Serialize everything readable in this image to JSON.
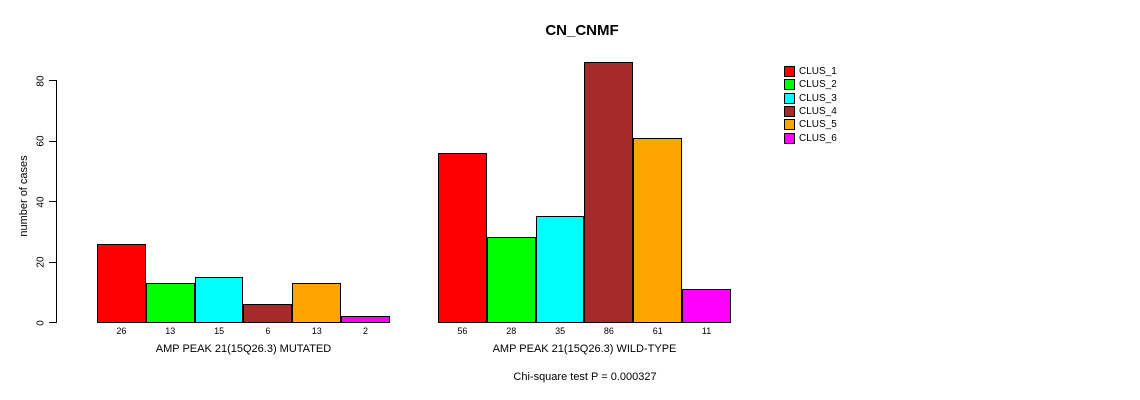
{
  "chart_data": {
    "type": "bar",
    "title": "CN_CNMF",
    "ylabel": "number of cases",
    "subtitle": "Chi-square test P = 0.000327",
    "ylim": [
      0,
      80
    ],
    "yticks": [
      0,
      20,
      40,
      60,
      80
    ],
    "grid": false,
    "bar_border_color": "#000000",
    "background_color": "#FFFFFF",
    "series_colors": [
      "#FF0000",
      "#00FF00",
      "#00FFFF",
      "#A52A2A",
      "#FFA500",
      "#FF00FF"
    ],
    "groups": [
      {
        "label": "AMP PEAK 21(15Q26.3) MUTATED",
        "values": [
          26,
          13,
          15,
          6,
          13,
          2
        ],
        "value_labels": [
          "26",
          "13",
          "15",
          "6",
          "13",
          "2"
        ]
      },
      {
        "label": "AMP PEAK 21(15Q26.3) WILD-TYPE",
        "values": [
          56,
          28,
          35,
          86,
          61,
          11
        ],
        "value_labels": [
          "56",
          "28",
          "35",
          "86",
          "61",
          "11"
        ]
      }
    ],
    "legend": {
      "position": "right",
      "entries": [
        {
          "label": "CLUS_1",
          "color": "#FF0000"
        },
        {
          "label": "CLUS_2",
          "color": "#00FF00"
        },
        {
          "label": "CLUS_3",
          "color": "#00FFFF"
        },
        {
          "label": "CLUS_4",
          "color": "#A52A2A"
        },
        {
          "label": "CLUS_5",
          "color": "#FFA500"
        },
        {
          "label": "CLUS_6",
          "color": "#FF00FF"
        }
      ]
    }
  }
}
